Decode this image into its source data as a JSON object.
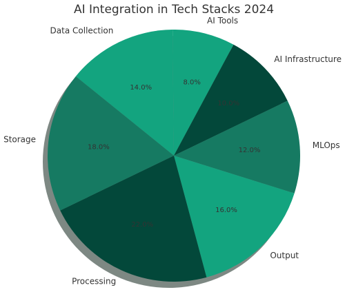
{
  "chart_data": {
    "type": "pie",
    "title": "AI Integration in Tech Stacks 2024",
    "categories": [
      "Data Collection",
      "AI Tools",
      "AI Infrastructure",
      "MLOps",
      "Output",
      "Processing",
      "Storage"
    ],
    "values": [
      14,
      8,
      10,
      12,
      16,
      22,
      18
    ],
    "value_labels": [
      "14.0%",
      "8.0%",
      "10.0%",
      "12.0%",
      "16.0%",
      "22.0%",
      "18.0%"
    ],
    "colors": [
      "#13a47f",
      "#13a47f",
      "#03483a",
      "#167a62",
      "#13a47f",
      "#03483a",
      "#167a62"
    ]
  }
}
